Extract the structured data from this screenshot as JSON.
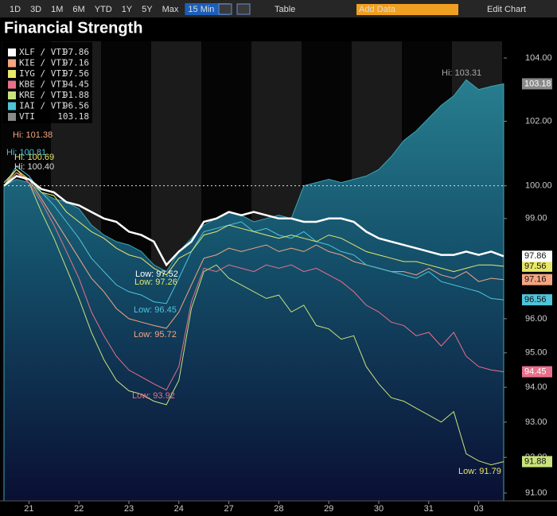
{
  "toolbar": {
    "ranges": [
      "1D",
      "3D",
      "1M",
      "6M",
      "YTD",
      "1Y",
      "5Y",
      "Max"
    ],
    "interval": "15 Min ▼",
    "table": "Table",
    "add_data": "Add Data",
    "edit_chart": "Edit Chart"
  },
  "chart_data": {
    "type": "line",
    "title": "Financial Strength",
    "log_scale": true,
    "xlim": [
      0,
      40
    ],
    "xticks": [
      {
        "value": 2,
        "label": "21"
      },
      {
        "value": 6,
        "label": "22"
      },
      {
        "value": 10,
        "label": "23"
      },
      {
        "value": 14,
        "label": "24"
      },
      {
        "value": 18,
        "label": "27"
      },
      {
        "value": 22,
        "label": "28"
      },
      {
        "value": 26,
        "label": "29"
      },
      {
        "value": 30,
        "label": "30"
      },
      {
        "value": 34,
        "label": "31"
      },
      {
        "value": 38,
        "label": "03"
      }
    ],
    "ylim": [
      91,
      104
    ],
    "yticks": [
      {
        "value": 104,
        "label": "104.00"
      },
      {
        "value": 102,
        "label": "102.00"
      },
      {
        "value": 100,
        "label": "100.00"
      },
      {
        "value": 99,
        "label": "99.00"
      },
      {
        "value": 96,
        "label": "96.00"
      },
      {
        "value": 95,
        "label": "95.00"
      },
      {
        "value": 94,
        "label": "94.00"
      },
      {
        "value": 93,
        "label": "93.00"
      },
      {
        "value": 92,
        "label": "92.00"
      },
      {
        "value": 91,
        "label": "91.00"
      }
    ],
    "series": [
      {
        "name": "VTI",
        "color": "#8a8a8a",
        "area": true,
        "values": [
          100.0,
          100.2,
          100.1,
          99.8,
          99.6,
          99.5,
          99.3,
          98.8,
          98.5,
          98.3,
          98.2,
          98.0,
          97.6,
          97.4,
          98.0,
          98.4,
          98.8,
          99.0,
          99.2,
          99.1,
          98.9,
          99.0,
          99.1,
          99.0,
          100.0,
          100.1,
          100.2,
          100.1,
          100.2,
          100.3,
          100.5,
          100.9,
          101.4,
          101.7,
          102.1,
          102.5,
          102.8,
          103.31,
          103.0,
          103.1,
          103.18
        ]
      },
      {
        "name": "KRE / VTI",
        "color": "#c9e27c",
        "values": [
          100.0,
          100.5,
          100.1,
          99.2,
          98.4,
          97.5,
          96.6,
          95.6,
          94.8,
          94.2,
          93.9,
          93.8,
          93.6,
          93.5,
          94.2,
          96.3,
          97.4,
          97.6,
          97.2,
          97.0,
          96.8,
          96.6,
          96.7,
          96.2,
          96.4,
          95.8,
          95.7,
          95.4,
          95.5,
          94.6,
          94.1,
          93.7,
          93.6,
          93.4,
          93.2,
          93.0,
          93.3,
          92.1,
          91.9,
          91.79,
          91.88
        ]
      },
      {
        "name": "KBE / VTI",
        "color": "#e8708a",
        "values": [
          100.0,
          100.4,
          100.1,
          99.5,
          98.8,
          98.0,
          97.2,
          96.2,
          95.5,
          94.9,
          94.5,
          94.3,
          94.1,
          93.92,
          94.6,
          96.5,
          97.5,
          97.4,
          97.6,
          97.5,
          97.4,
          97.6,
          97.5,
          97.6,
          97.4,
          97.5,
          97.3,
          97.1,
          96.8,
          96.4,
          96.2,
          95.9,
          95.8,
          95.5,
          95.6,
          95.2,
          95.6,
          94.9,
          94.6,
          94.5,
          94.45
        ]
      },
      {
        "name": "KIE / VTI",
        "color": "#f4a582",
        "values": [
          100.0,
          100.4,
          100.2,
          99.6,
          99.0,
          98.4,
          97.8,
          97.2,
          96.8,
          96.3,
          96.0,
          95.9,
          95.8,
          95.72,
          96.2,
          97.0,
          97.8,
          97.9,
          98.1,
          98.0,
          98.1,
          98.2,
          98.0,
          98.1,
          98.0,
          98.2,
          98.0,
          97.9,
          97.7,
          97.6,
          97.5,
          97.4,
          97.4,
          97.3,
          97.5,
          97.3,
          97.2,
          97.4,
          97.1,
          97.2,
          97.16
        ]
      },
      {
        "name": "IAI / VTI",
        "color": "#4fc3d9",
        "values": [
          100.0,
          100.6,
          100.3,
          99.8,
          99.4,
          98.9,
          98.4,
          97.8,
          97.4,
          97.0,
          96.8,
          96.7,
          96.5,
          96.45,
          97.2,
          98.0,
          98.6,
          98.7,
          98.8,
          98.9,
          98.6,
          98.7,
          98.5,
          98.4,
          98.6,
          98.3,
          98.2,
          98.0,
          97.9,
          97.6,
          97.5,
          97.4,
          97.3,
          97.2,
          97.4,
          97.1,
          97.0,
          96.9,
          96.8,
          96.6,
          96.56
        ]
      },
      {
        "name": "IYG / VTI",
        "color": "#e8e86a",
        "values": [
          100.1,
          100.5,
          100.2,
          99.8,
          99.7,
          99.2,
          98.9,
          98.6,
          98.4,
          98.1,
          97.9,
          97.8,
          97.5,
          97.3,
          97.8,
          98.0,
          98.5,
          98.6,
          98.8,
          98.7,
          98.6,
          98.5,
          98.4,
          98.5,
          98.4,
          98.3,
          98.5,
          98.4,
          98.2,
          98.0,
          97.9,
          97.8,
          97.7,
          97.7,
          97.6,
          97.5,
          97.4,
          97.5,
          97.6,
          97.6,
          97.56
        ]
      },
      {
        "name": "XLF / VTI",
        "color": "#ffffff",
        "values": [
          100.0,
          100.3,
          100.2,
          99.9,
          99.8,
          99.5,
          99.4,
          99.2,
          99.0,
          98.9,
          98.6,
          98.5,
          98.3,
          97.6,
          98.0,
          98.3,
          98.9,
          99.0,
          99.2,
          99.1,
          99.2,
          99.1,
          99.0,
          99.0,
          98.9,
          98.9,
          99.0,
          99.0,
          98.9,
          98.6,
          98.4,
          98.3,
          98.2,
          98.1,
          98.0,
          97.9,
          97.9,
          98.0,
          97.9,
          98.0,
          97.86
        ]
      }
    ],
    "legend_order": [
      "XLF / VTI",
      "KIE / VTI",
      "IYG / VTI",
      "KBE / VTI",
      "KRE / VTI",
      "IAI / VTI",
      "VTI"
    ],
    "annotations": [
      "Hi: 103.31",
      "Hi: 101.38",
      "Hi: 100.81",
      "Hi: 100.69",
      "Hi: 100.40",
      "Low: 97.52",
      "Low: 97.26",
      "Low: 96.45",
      "Low: 95.72",
      "Low: 93.92",
      "Low: 91.79"
    ]
  }
}
